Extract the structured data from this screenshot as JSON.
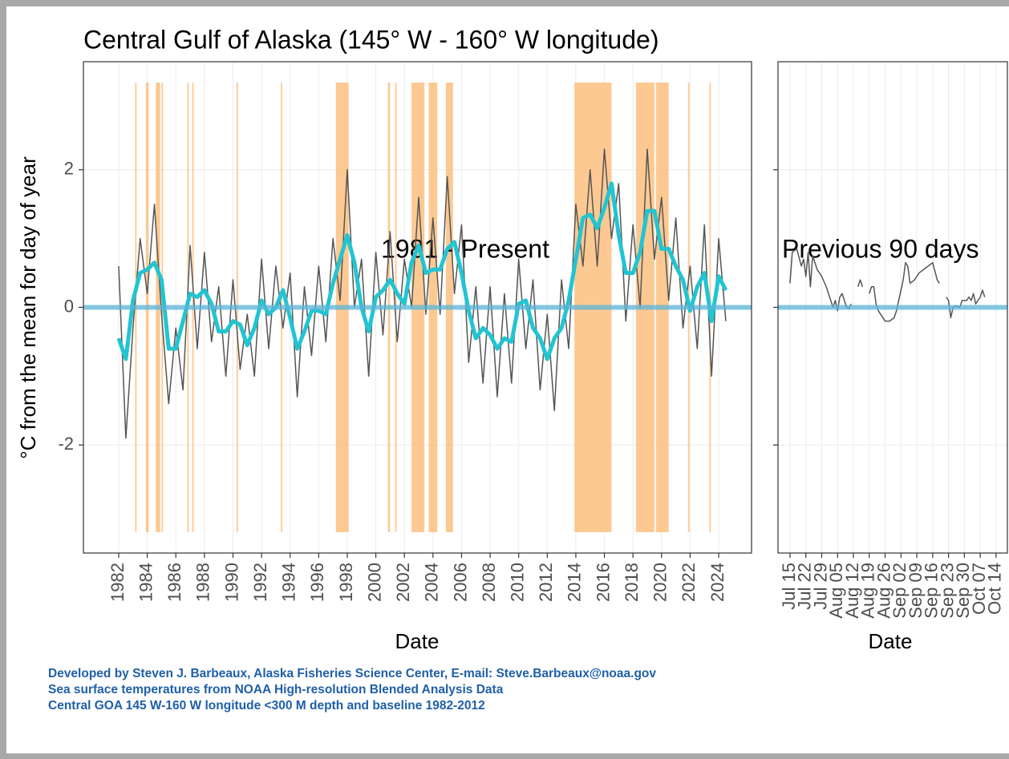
{
  "chart_data": [
    {
      "type": "line",
      "title": "Central Gulf of Alaska (145° W - 160° W longitude)",
      "y_label": "°C from the mean for day of year",
      "x_label": "Date",
      "annotation": "1981 - Present",
      "xlim": [
        1979.53,
        2026.3
      ],
      "ylim": [
        -3.57,
        3.57
      ],
      "xticks": [
        1982,
        1984,
        1986,
        1988,
        1990,
        1992,
        1994,
        1996,
        1998,
        2000,
        2002,
        2004,
        2006,
        2008,
        2010,
        2012,
        2014,
        2016,
        2018,
        2020,
        2022,
        2024
      ],
      "yticks": [
        -2,
        0,
        2
      ],
      "grid": true,
      "reference_line": 0,
      "reference_color": "#5bb5d9",
      "band_color": "#fdbf80",
      "heatwave_periods": [
        [
          1983.15,
          1983.25
        ],
        [
          1983.9,
          1984.1
        ],
        [
          1984.6,
          1984.9
        ],
        [
          1985.0,
          1985.1
        ],
        [
          1986.8,
          1986.9
        ],
        [
          1987.15,
          1987.25
        ],
        [
          1990.25,
          1990.35
        ],
        [
          1993.35,
          1993.45
        ],
        [
          1997.2,
          1998.1
        ],
        [
          2000.85,
          2001.0
        ],
        [
          2001.35,
          2001.45
        ],
        [
          2002.5,
          2003.4
        ],
        [
          2003.7,
          2004.3
        ],
        [
          2004.9,
          2005.4
        ],
        [
          2013.9,
          2016.5
        ],
        [
          2018.2,
          2019.5
        ],
        [
          2019.6,
          2020.5
        ],
        [
          2021.85,
          2021.95
        ],
        [
          2023.35,
          2023.45
        ]
      ],
      "x": [
        1982,
        1982.5,
        1983,
        1983.5,
        1984,
        1984.5,
        1985,
        1985.5,
        1986,
        1986.5,
        1987,
        1987.5,
        1988,
        1988.5,
        1989,
        1989.5,
        1990,
        1990.5,
        1991,
        1991.5,
        1992,
        1992.5,
        1993,
        1993.5,
        1994,
        1994.5,
        1995,
        1995.5,
        1996,
        1996.5,
        1997,
        1997.5,
        1998,
        1998.5,
        1999,
        1999.5,
        2000,
        2000.5,
        2001,
        2001.5,
        2002,
        2002.5,
        2003,
        2003.5,
        2004,
        2004.5,
        2005,
        2005.5,
        2006,
        2006.5,
        2007,
        2007.5,
        2008,
        2008.5,
        2009,
        2009.5,
        2010,
        2010.5,
        2011,
        2011.5,
        2012,
        2012.5,
        2013,
        2013.5,
        2014,
        2014.5,
        2015,
        2015.5,
        2016,
        2016.5,
        2017,
        2017.5,
        2018,
        2018.5,
        2019,
        2019.5,
        2020,
        2020.5,
        2021,
        2021.5,
        2022,
        2022.5,
        2023,
        2023.5,
        2024,
        2024.5
      ],
      "series": [
        {
          "color": "#555555",
          "values": [
            0.6,
            -1.9,
            -0.3,
            1.0,
            0.2,
            1.5,
            -0.1,
            -1.4,
            -0.3,
            -1.2,
            0.9,
            -0.6,
            0.8,
            -0.5,
            0.3,
            -1.0,
            0.4,
            -0.9,
            -0.1,
            -1.0,
            0.7,
            -0.6,
            0.6,
            -0.3,
            0.5,
            -1.3,
            0.3,
            -0.7,
            0.6,
            -0.5,
            1.0,
            0.1,
            2.0,
            0.0,
            0.7,
            -1.0,
            0.8,
            -0.4,
            1.1,
            -0.5,
            0.7,
            0.0,
            1.6,
            -0.1,
            1.3,
            -0.1,
            1.9,
            0.2,
            1.2,
            -0.8,
            0.3,
            -1.1,
            0.3,
            -1.3,
            0.2,
            -1.1,
            0.7,
            -0.6,
            0.4,
            -1.2,
            -0.1,
            -1.5,
            0.4,
            -0.6,
            1.5,
            0.6,
            2.0,
            0.6,
            2.3,
            1.0,
            1.8,
            -0.2,
            1.2,
            0.0,
            2.3,
            0.7,
            1.6,
            0.1,
            1.3,
            -0.3,
            0.6,
            -0.6,
            1.2,
            -1.0,
            1.0,
            -0.2
          ]
        },
        {
          "color": "#22c4d2",
          "values": [
            -0.45,
            -0.75,
            0.1,
            0.5,
            0.55,
            0.65,
            0.4,
            -0.6,
            -0.6,
            -0.2,
            0.2,
            0.15,
            0.25,
            0.05,
            -0.35,
            -0.35,
            -0.2,
            -0.25,
            -0.55,
            -0.3,
            0.1,
            -0.1,
            0.0,
            0.25,
            -0.15,
            -0.6,
            -0.35,
            -0.05,
            -0.05,
            -0.1,
            0.35,
            0.7,
            1.05,
            0.65,
            0.0,
            -0.35,
            0.15,
            0.25,
            0.4,
            0.2,
            0.05,
            0.65,
            0.9,
            0.5,
            0.55,
            0.55,
            0.85,
            0.95,
            0.5,
            -0.05,
            -0.45,
            -0.3,
            -0.4,
            -0.6,
            -0.45,
            -0.5,
            0.05,
            0.1,
            -0.3,
            -0.45,
            -0.75,
            -0.45,
            -0.3,
            0.1,
            0.7,
            1.3,
            1.35,
            1.15,
            1.45,
            1.8,
            1.05,
            0.5,
            0.5,
            0.8,
            1.4,
            1.4,
            0.85,
            0.85,
            0.6,
            0.4,
            -0.05,
            0.3,
            0.5,
            -0.2,
            0.45,
            0.25
          ]
        }
      ]
    },
    {
      "type": "line",
      "x_label": "Date",
      "annotation": "Previous 90 days",
      "xlim": [
        -5.3,
        96
      ],
      "ylim": [
        -3.57,
        3.57
      ],
      "xticks": [
        {
          "value": 0,
          "label": "Jul 15"
        },
        {
          "value": 7,
          "label": "Jul 22"
        },
        {
          "value": 14,
          "label": "Jul 29"
        },
        {
          "value": 21,
          "label": "Aug 05"
        },
        {
          "value": 28,
          "label": "Aug 12"
        },
        {
          "value": 35,
          "label": "Aug 19"
        },
        {
          "value": 42,
          "label": "Aug 26"
        },
        {
          "value": 49,
          "label": "Sep 02"
        },
        {
          "value": 56,
          "label": "Sep 09"
        },
        {
          "value": 63,
          "label": "Sep 16"
        },
        {
          "value": 70,
          "label": "Sep 23"
        },
        {
          "value": 77,
          "label": "Sep 30"
        },
        {
          "value": 84,
          "label": "Oct 07"
        },
        {
          "value": 91,
          "label": "Oct 14"
        }
      ],
      "grid": true,
      "reference_line": 0,
      "reference_color": "#5bb5d9",
      "x": [
        0,
        1,
        3,
        5,
        6,
        7,
        8,
        9,
        10,
        12,
        14,
        16,
        17,
        19,
        20,
        21,
        22,
        23,
        24,
        25,
        26,
        27,
        28,
        30,
        31,
        32,
        33,
        35,
        36,
        37,
        38,
        39,
        40,
        42,
        44,
        46,
        47,
        48,
        50,
        51,
        52,
        53,
        55,
        57,
        59,
        61,
        63,
        65,
        66,
        67,
        69,
        70,
        71,
        72,
        73,
        75,
        76,
        78,
        79,
        80,
        81,
        82,
        84,
        85,
        86
      ],
      "series": [
        {
          "color": "#555555",
          "values": [
            0.35,
            0.8,
            0.85,
            0.6,
            0.7,
            0.45,
            0.8,
            0.3,
            0.75,
            0.55,
            0.45,
            0.3,
            0.2,
            0.0,
            0.1,
            -0.05,
            0.15,
            0.2,
            0.1,
            0.0,
            -0.02,
            0.05,
            null,
            0.3,
            0.4,
            0.3,
            null,
            0.2,
            0.3,
            0.3,
            0.05,
            -0.05,
            -0.1,
            -0.2,
            -0.2,
            -0.15,
            -0.05,
            0.1,
            0.4,
            0.65,
            0.6,
            0.35,
            0.4,
            0.5,
            0.55,
            0.6,
            0.65,
            0.4,
            0.35,
            null,
            0.15,
            0.1,
            -0.15,
            0.0,
            0.02,
            0.0,
            0.1,
            0.1,
            0.15,
            0.1,
            0.2,
            0.05,
            0.15,
            0.25,
            0.15
          ]
        }
      ]
    }
  ],
  "footer": [
    "Developed by Steven J. Barbeaux, Alaska Fisheries Science Center, E-mail: Steve.Barbeaux@noaa.gov",
    "Sea surface temperatures from NOAA High-resolution Blended Analysis Data",
    "Central GOA 145 W-160 W longitude <300 M depth and baseline 1982-2012"
  ]
}
